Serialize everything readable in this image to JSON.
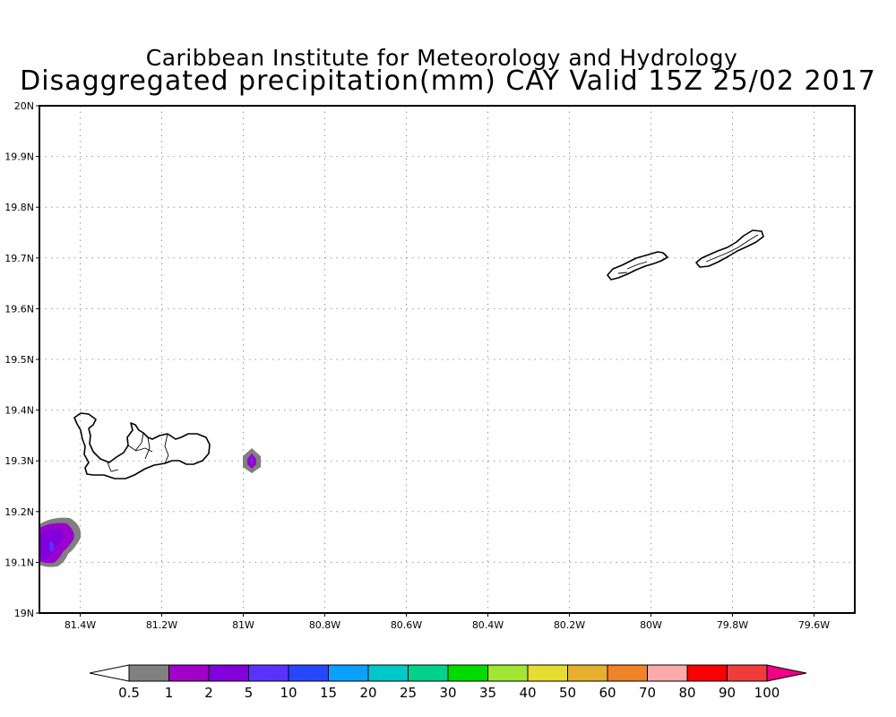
{
  "title": {
    "line1": "Caribbean Institute for Meteorology and Hydrology",
    "line2": "Disaggregated precipitation(mm) CAY Valid 15Z 25/02 2017"
  },
  "map": {
    "lon_range": [
      -81.5,
      -79.5
    ],
    "lat_range": [
      19.0,
      20.0
    ],
    "grid": "dotted",
    "lat_ticks": [
      {
        "value": 20.0,
        "label": "20N"
      },
      {
        "value": 19.9,
        "label": "19.9N"
      },
      {
        "value": 19.8,
        "label": "19.8N"
      },
      {
        "value": 19.7,
        "label": "19.7N"
      },
      {
        "value": 19.6,
        "label": "19.6N"
      },
      {
        "value": 19.5,
        "label": "19.5N"
      },
      {
        "value": 19.4,
        "label": "19.4N"
      },
      {
        "value": 19.3,
        "label": "19.3N"
      },
      {
        "value": 19.2,
        "label": "19.2N"
      },
      {
        "value": 19.1,
        "label": "19.1N"
      },
      {
        "value": 19.0,
        "label": "19N"
      }
    ],
    "lon_ticks": [
      {
        "value": -81.4,
        "label": "81.4W"
      },
      {
        "value": -81.2,
        "label": "81.2W"
      },
      {
        "value": -81.0,
        "label": "81W"
      },
      {
        "value": -80.8,
        "label": "80.8W"
      },
      {
        "value": -80.6,
        "label": "80.6W"
      },
      {
        "value": -80.4,
        "label": "80.4W"
      },
      {
        "value": -80.2,
        "label": "80.2W"
      },
      {
        "value": -80.0,
        "label": "80W"
      },
      {
        "value": -79.8,
        "label": "79.8W"
      },
      {
        "value": -79.6,
        "label": "79.6W"
      }
    ]
  },
  "colorbar": {
    "labels": [
      "0.5",
      "1",
      "2",
      "5",
      "10",
      "15",
      "20",
      "25",
      "30",
      "35",
      "40",
      "50",
      "60",
      "70",
      "80",
      "90",
      "100"
    ],
    "colors": [
      "#ffffff",
      "#808080",
      "#a000c8",
      "#8200dc",
      "#5a32ff",
      "#2846ff",
      "#0aa0ff",
      "#00c8c8",
      "#00d28c",
      "#00dc00",
      "#a0e632",
      "#e6dc32",
      "#e6af2d",
      "#f08228",
      "#faaaaa",
      "#fa0000",
      "#f03c3c",
      "#f00082"
    ]
  }
}
